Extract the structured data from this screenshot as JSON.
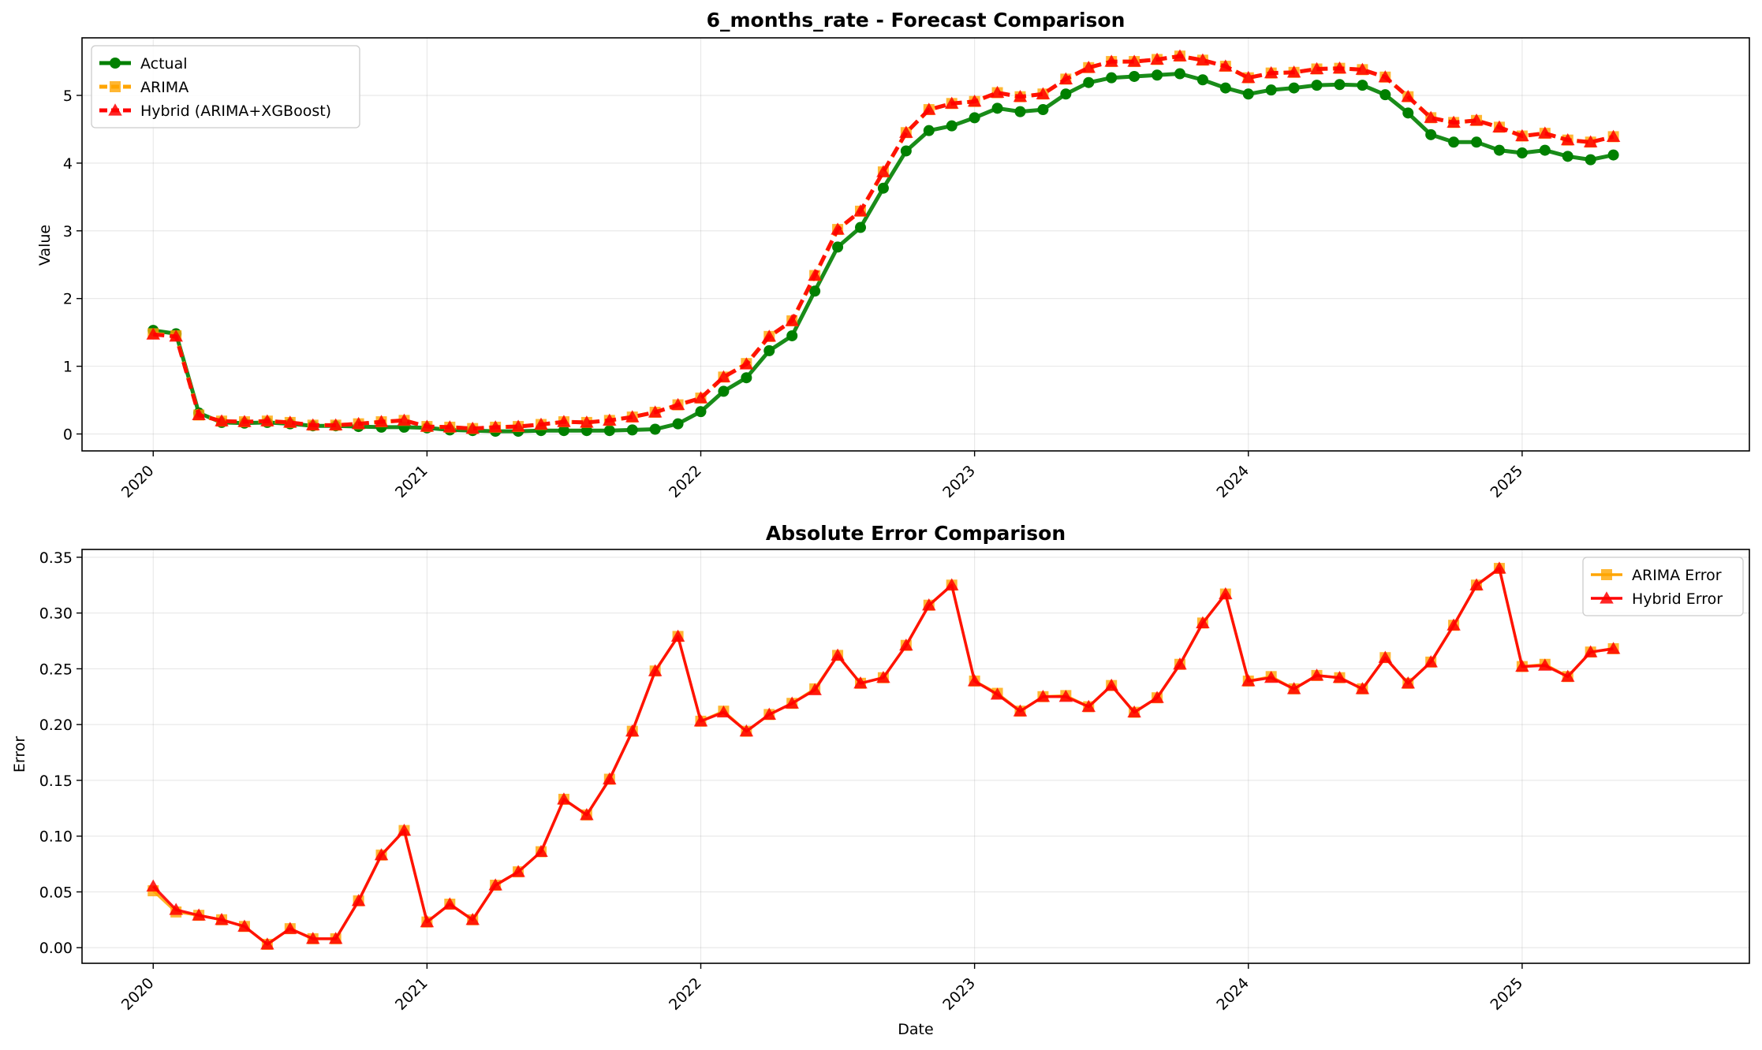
{
  "chart_data": [
    {
      "type": "line",
      "title": "6_months_rate - Forecast Comparison",
      "xlabel": "",
      "ylabel": "Value",
      "x_ticks": [
        "2020",
        "2021",
        "2022",
        "2023",
        "2024",
        "2025"
      ],
      "y_ticks": [
        "0",
        "1",
        "2",
        "3",
        "4",
        "5"
      ],
      "ylim": [
        -0.25,
        5.85
      ],
      "grid": true,
      "legend_position": "upper-left",
      "x": [
        "2020-01",
        "2020-02",
        "2020-03",
        "2020-04",
        "2020-05",
        "2020-06",
        "2020-07",
        "2020-08",
        "2020-09",
        "2020-10",
        "2020-11",
        "2020-12",
        "2021-01",
        "2021-02",
        "2021-03",
        "2021-04",
        "2021-05",
        "2021-06",
        "2021-07",
        "2021-08",
        "2021-09",
        "2021-10",
        "2021-11",
        "2021-12",
        "2022-01",
        "2022-02",
        "2022-03",
        "2022-04",
        "2022-05",
        "2022-06",
        "2022-07",
        "2022-08",
        "2022-09",
        "2022-10",
        "2022-11",
        "2022-12",
        "2023-01",
        "2023-02",
        "2023-03",
        "2023-04",
        "2023-05",
        "2023-06",
        "2023-07",
        "2023-08",
        "2023-09",
        "2023-10",
        "2023-11",
        "2023-12",
        "2024-01",
        "2024-02",
        "2024-03",
        "2024-04",
        "2024-05",
        "2024-06",
        "2024-07",
        "2024-08",
        "2024-09",
        "2024-10",
        "2024-11",
        "2024-12",
        "2025-01",
        "2025-02",
        "2025-03",
        "2025-04",
        "2025-05"
      ],
      "series": [
        {
          "name": "Actual",
          "color": "#008000",
          "marker": "circle",
          "dash": "solid",
          "values": [
            1.53,
            1.48,
            0.31,
            0.17,
            0.16,
            0.17,
            0.15,
            0.12,
            0.12,
            0.11,
            0.1,
            0.1,
            0.09,
            0.06,
            0.05,
            0.04,
            0.04,
            0.05,
            0.05,
            0.05,
            0.05,
            0.06,
            0.07,
            0.15,
            0.33,
            0.63,
            0.83,
            1.23,
            1.45,
            2.11,
            2.76,
            3.05,
            3.63,
            4.18,
            4.48,
            4.55,
            4.67,
            4.81,
            4.76,
            4.79,
            5.02,
            5.19,
            5.26,
            5.28,
            5.3,
            5.32,
            5.23,
            5.11,
            5.02,
            5.08,
            5.11,
            5.15,
            5.16,
            5.15,
            5.01,
            4.74,
            4.42,
            4.31,
            4.31,
            4.19,
            4.15,
            4.19,
            4.1,
            4.05,
            4.12
          ]
        },
        {
          "name": "ARIMA",
          "color": "#ffa500",
          "marker": "square",
          "dash": "dashed",
          "values": [
            1.48,
            1.45,
            0.28,
            0.19,
            0.18,
            0.19,
            0.17,
            0.13,
            0.13,
            0.15,
            0.18,
            0.2,
            0.11,
            0.1,
            0.08,
            0.1,
            0.11,
            0.14,
            0.18,
            0.17,
            0.2,
            0.25,
            0.32,
            0.43,
            0.53,
            0.84,
            1.04,
            1.44,
            1.67,
            2.34,
            3.02,
            3.29,
            3.87,
            4.45,
            4.79,
            4.88,
            4.91,
            5.04,
            4.98,
            5.02,
            5.24,
            5.41,
            5.5,
            5.5,
            5.53,
            5.58,
            5.52,
            5.43,
            5.26,
            5.33,
            5.34,
            5.39,
            5.4,
            5.38,
            5.27,
            4.98,
            4.67,
            4.6,
            4.63,
            4.53,
            4.4,
            4.44,
            4.34,
            4.31,
            4.39
          ]
        },
        {
          "name": "Hybrid (ARIMA+XGBoost)",
          "color": "#ff0000",
          "marker": "triangle",
          "dash": "dashed",
          "values": [
            1.47,
            1.44,
            0.28,
            0.19,
            0.18,
            0.19,
            0.17,
            0.13,
            0.13,
            0.15,
            0.18,
            0.2,
            0.11,
            0.1,
            0.08,
            0.1,
            0.11,
            0.14,
            0.18,
            0.17,
            0.2,
            0.25,
            0.32,
            0.43,
            0.53,
            0.84,
            1.03,
            1.44,
            1.67,
            2.34,
            3.02,
            3.29,
            3.87,
            4.45,
            4.79,
            4.88,
            4.91,
            5.04,
            4.98,
            5.02,
            5.24,
            5.41,
            5.5,
            5.5,
            5.53,
            5.58,
            5.52,
            5.43,
            5.26,
            5.33,
            5.34,
            5.39,
            5.4,
            5.38,
            5.27,
            4.98,
            4.67,
            4.6,
            4.63,
            4.53,
            4.4,
            4.44,
            4.34,
            4.31,
            4.39
          ]
        }
      ]
    },
    {
      "type": "line",
      "title": "Absolute Error Comparison",
      "xlabel": "Date",
      "ylabel": "Error",
      "x_ticks": [
        "2020",
        "2021",
        "2022",
        "2023",
        "2024",
        "2025"
      ],
      "y_ticks": [
        "0.00",
        "0.05",
        "0.10",
        "0.15",
        "0.20",
        "0.25",
        "0.30",
        "0.35"
      ],
      "ylim": [
        -0.014,
        0.357
      ],
      "grid": true,
      "legend_position": "upper-right",
      "x": [
        "2020-01",
        "2020-02",
        "2020-03",
        "2020-04",
        "2020-05",
        "2020-06",
        "2020-07",
        "2020-08",
        "2020-09",
        "2020-10",
        "2020-11",
        "2020-12",
        "2021-01",
        "2021-02",
        "2021-03",
        "2021-04",
        "2021-05",
        "2021-06",
        "2021-07",
        "2021-08",
        "2021-09",
        "2021-10",
        "2021-11",
        "2021-12",
        "2022-01",
        "2022-02",
        "2022-03",
        "2022-04",
        "2022-05",
        "2022-06",
        "2022-07",
        "2022-08",
        "2022-09",
        "2022-10",
        "2022-11",
        "2022-12",
        "2023-01",
        "2023-02",
        "2023-03",
        "2023-04",
        "2023-05",
        "2023-06",
        "2023-07",
        "2023-08",
        "2023-09",
        "2023-10",
        "2023-11",
        "2023-12",
        "2024-01",
        "2024-02",
        "2024-03",
        "2024-04",
        "2024-05",
        "2024-06",
        "2024-07",
        "2024-08",
        "2024-09",
        "2024-10",
        "2024-11",
        "2024-12",
        "2025-01",
        "2025-02",
        "2025-03",
        "2025-04",
        "2025-05"
      ],
      "series": [
        {
          "name": "ARIMA Error",
          "color": "#ffa500",
          "marker": "square",
          "dash": "solid",
          "values": [
            0.051,
            0.032,
            0.029,
            0.025,
            0.019,
            0.003,
            0.017,
            0.008,
            0.008,
            0.042,
            0.083,
            0.105,
            0.023,
            0.039,
            0.025,
            0.056,
            0.068,
            0.086,
            0.133,
            0.119,
            0.151,
            0.194,
            0.248,
            0.279,
            0.203,
            0.212,
            0.194,
            0.209,
            0.219,
            0.232,
            0.262,
            0.237,
            0.242,
            0.271,
            0.307,
            0.325,
            0.239,
            0.228,
            0.212,
            0.225,
            0.226,
            0.216,
            0.235,
            0.211,
            0.224,
            0.254,
            0.291,
            0.317,
            0.239,
            0.243,
            0.232,
            0.244,
            0.242,
            0.232,
            0.26,
            0.237,
            0.256,
            0.289,
            0.325,
            0.34,
            0.252,
            0.254,
            0.243,
            0.265,
            0.268
          ]
        },
        {
          "name": "Hybrid Error",
          "color": "#ff0000",
          "marker": "triangle",
          "dash": "solid",
          "values": [
            0.055,
            0.034,
            0.029,
            0.025,
            0.019,
            0.003,
            0.017,
            0.008,
            0.008,
            0.042,
            0.083,
            0.105,
            0.023,
            0.039,
            0.025,
            0.056,
            0.068,
            0.086,
            0.133,
            0.119,
            0.151,
            0.194,
            0.248,
            0.279,
            0.203,
            0.211,
            0.194,
            0.209,
            0.219,
            0.231,
            0.262,
            0.237,
            0.242,
            0.271,
            0.307,
            0.325,
            0.239,
            0.227,
            0.212,
            0.225,
            0.225,
            0.216,
            0.235,
            0.211,
            0.224,
            0.254,
            0.291,
            0.317,
            0.239,
            0.242,
            0.232,
            0.244,
            0.242,
            0.232,
            0.26,
            0.237,
            0.256,
            0.289,
            0.325,
            0.34,
            0.252,
            0.253,
            0.243,
            0.265,
            0.268
          ]
        }
      ]
    }
  ]
}
